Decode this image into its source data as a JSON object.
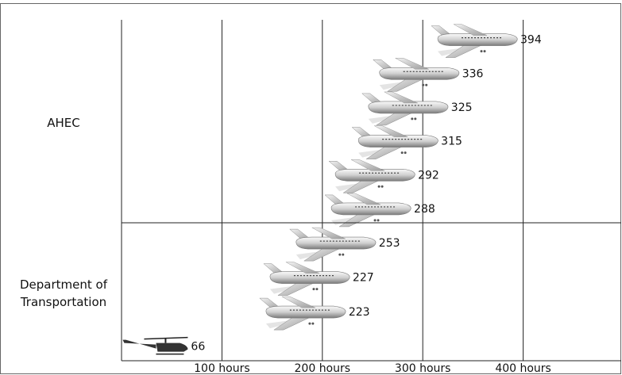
{
  "chart_data": {
    "type": "pictograph",
    "categories": [
      "AHEC",
      "Department of Transportation"
    ],
    "values": [
      [
        394,
        336,
        325,
        315,
        292,
        288
      ],
      [
        253,
        227,
        223,
        66
      ]
    ],
    "xlim": [
      0,
      500
    ],
    "xticks": [
      {
        "value": 100,
        "label": "100 hours"
      },
      {
        "value": 200,
        "label": "200 hours"
      },
      {
        "value": 300,
        "label": "300 hours"
      },
      {
        "value": 400,
        "label": "400 hours"
      }
    ],
    "grid": true
  }
}
